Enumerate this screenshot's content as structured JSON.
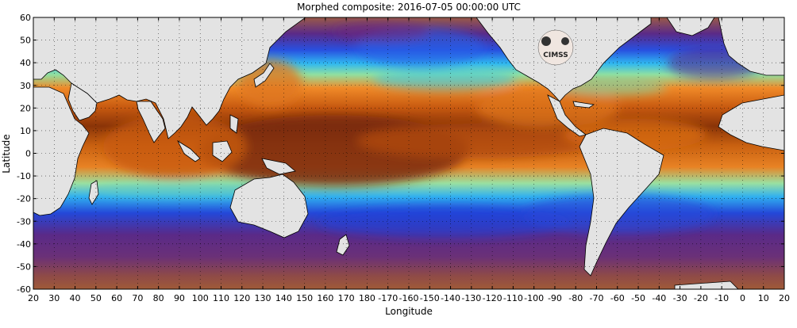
{
  "title": "Morphed composite: 2016-07-05 00:00:00 UTC",
  "xlabel": "Longitude",
  "ylabel": "Latitude",
  "logo_text": "CIMSS",
  "x_ticks": [
    "20",
    "30",
    "40",
    "50",
    "60",
    "70",
    "80",
    "90",
    "100",
    "110",
    "120",
    "130",
    "140",
    "150",
    "160",
    "170",
    "180",
    "-170",
    "-160",
    "-150",
    "-140",
    "-130",
    "-120",
    "-110",
    "-100",
    "-90",
    "-80",
    "-70",
    "-60",
    "-50",
    "-40",
    "-30",
    "-20",
    "-10",
    "0",
    "10",
    "20"
  ],
  "y_ticks": [
    "60",
    "50",
    "40",
    "30",
    "20",
    "10",
    "0",
    "-10",
    "-20",
    "-30",
    "-40",
    "-50",
    "-60"
  ],
  "colors": {
    "land": "#e3e3e3",
    "coast": "#000000",
    "very_moist": "#7a2a08",
    "moist": "#c85a10",
    "warm": "#f08a28",
    "mid": "#8be0a0",
    "cyan": "#2fb8f0",
    "blue": "#2050e0",
    "dry": "#5a2a88",
    "very_dry": "#a05038"
  },
  "chart_data": {
    "type": "heatmap",
    "description_field": "total precipitable water composite",
    "xlim": [
      20,
      380
    ],
    "ylim": [
      -60,
      60
    ],
    "grid": true,
    "legend": "none"
  }
}
